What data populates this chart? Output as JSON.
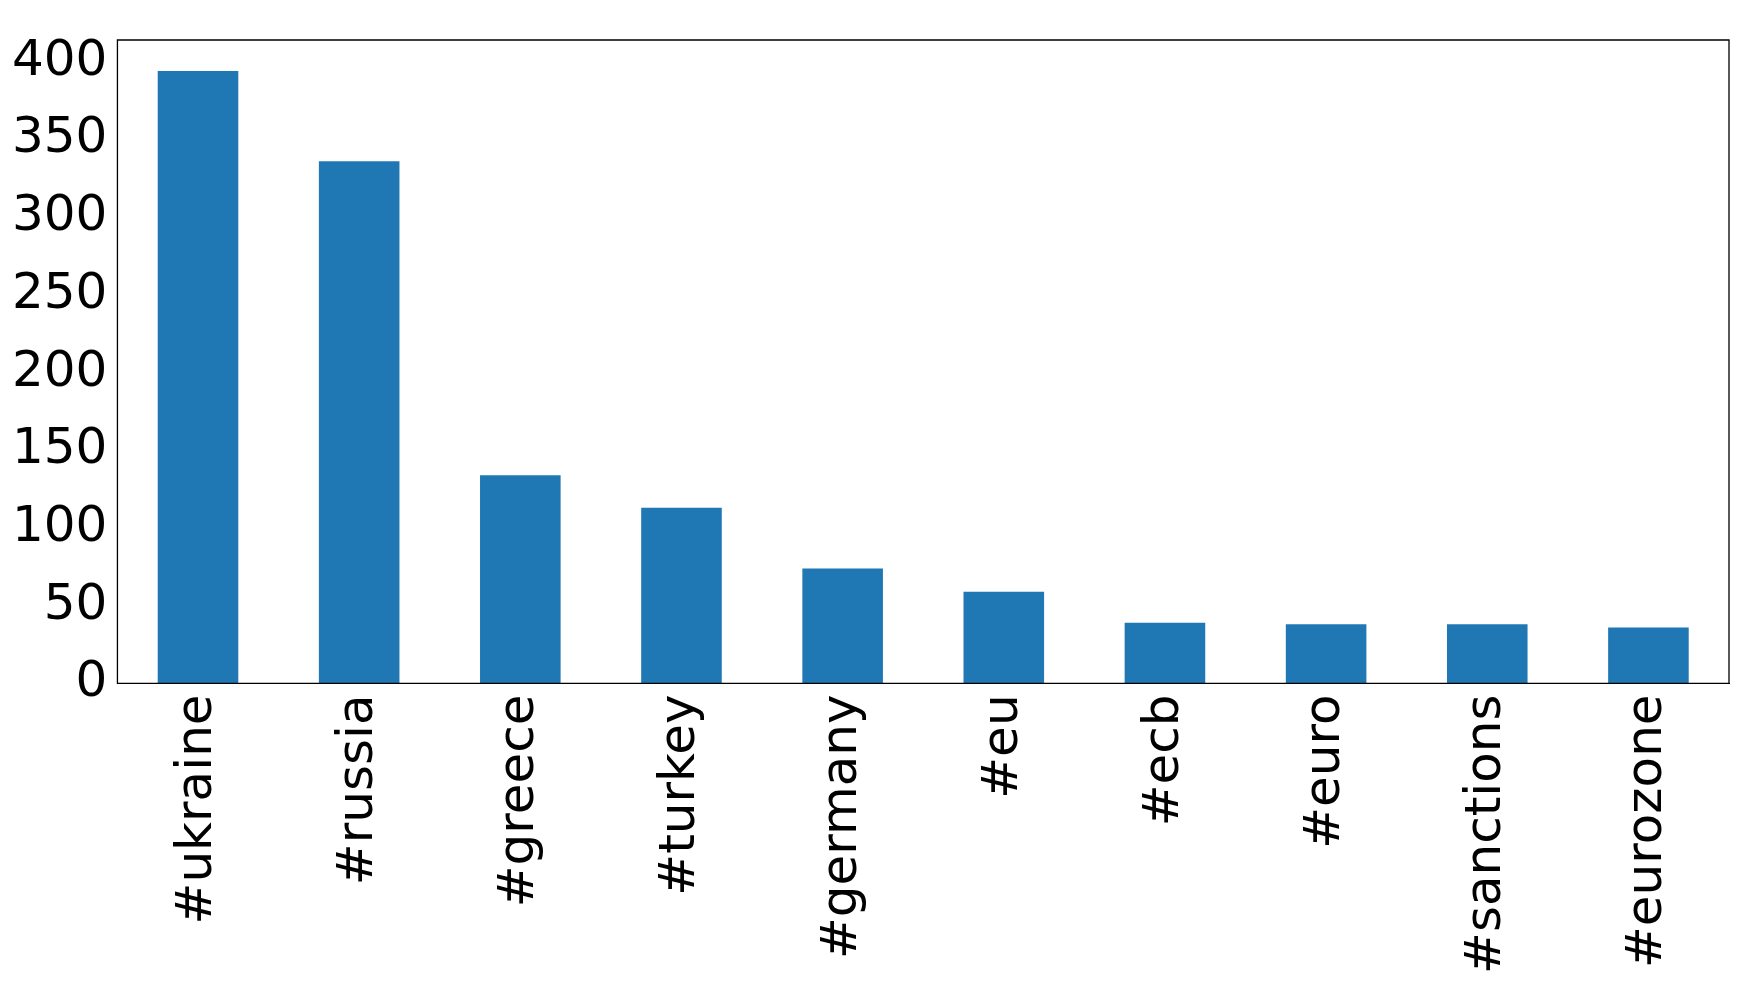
{
  "chart_data": {
    "type": "bar",
    "categories": [
      "#ukraine",
      "#russia",
      "#greece",
      "#turkey",
      "#germany",
      "#eu",
      "#ecb",
      "#euro",
      "#sanctions",
      "#eurozone"
    ],
    "values": [
      394,
      336,
      134,
      113,
      74,
      59,
      39,
      38,
      38,
      36
    ],
    "color": "#1f77b4",
    "ylim": [
      0,
      414
    ],
    "yticks": [
      0,
      50,
      100,
      150,
      200,
      250,
      300,
      350,
      400
    ],
    "grid": false,
    "legend": false
  }
}
